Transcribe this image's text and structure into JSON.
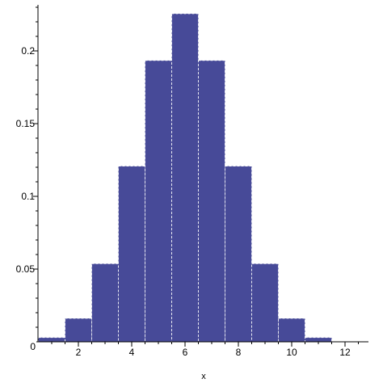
{
  "chart_data": {
    "type": "bar",
    "title": "",
    "xlabel": "x",
    "ylabel": "",
    "x": [
      1,
      2,
      3,
      4,
      5,
      6,
      7,
      8,
      9,
      10,
      11
    ],
    "values": [
      0.00293,
      0.0161,
      0.0537,
      0.1208,
      0.1934,
      0.2256,
      0.1934,
      0.1208,
      0.0537,
      0.0161,
      0.00293
    ],
    "bar_width": 1,
    "xlim": [
      0,
      12.5
    ],
    "ylim": [
      0,
      0.235
    ],
    "x_ticks": [
      2,
      4,
      6,
      8,
      10,
      12
    ],
    "x_tick_labels": [
      "2",
      "4",
      "6",
      "8",
      "10",
      "12"
    ],
    "x_minor_step": 0.5,
    "y_ticks": [
      0,
      0.05,
      0.1,
      0.15,
      0.2
    ],
    "y_tick_labels": [
      "0",
      "0.05",
      "0.1",
      "0.15",
      "0.2"
    ],
    "y_minor_step": 0.01,
    "grid": false,
    "legend": "none",
    "colors": {
      "bar": "#474a98",
      "axis": "#000000",
      "bar_edge": "#ffffff"
    }
  }
}
